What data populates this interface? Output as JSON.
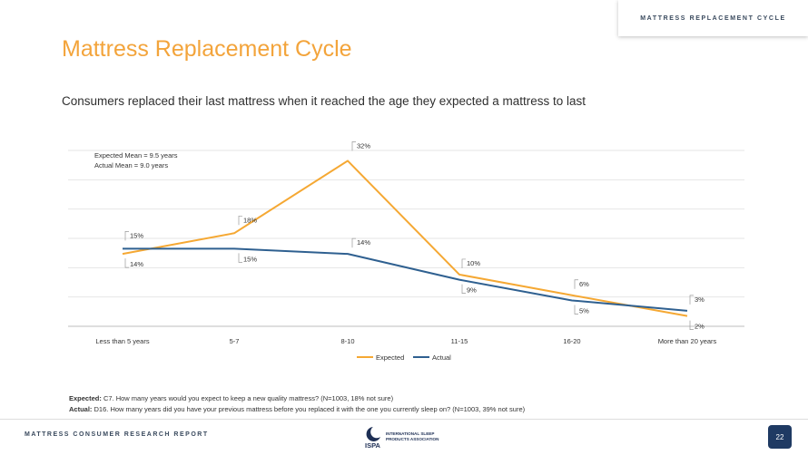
{
  "header": {
    "section_label": "MATTRESS REPLACEMENT CYCLE",
    "title": "Mattress Replacement Cycle",
    "subtitle": "Consumers replaced their last mattress when it reached the age they expected a mattress to last"
  },
  "chart_data": {
    "type": "line",
    "title": "",
    "xlabel": "",
    "ylabel": "",
    "categories": [
      "Less than 5 years",
      "5-7",
      "8-10",
      "11-15",
      "16-20",
      "More than 20 years"
    ],
    "series": [
      {
        "name": "Expected",
        "color": "#f5a833",
        "values": [
          14,
          18,
          32,
          10,
          6,
          2
        ],
        "labels": [
          "14%",
          "18%",
          "32%",
          "10%",
          "6%",
          "2%"
        ]
      },
      {
        "name": "Actual",
        "color": "#2f6090",
        "values": [
          15,
          15,
          14,
          9,
          5,
          3
        ],
        "labels": [
          "15%",
          "15%",
          "14%",
          "9%",
          "5%",
          "3%"
        ]
      }
    ],
    "ylim": [
      0,
      34
    ],
    "grid": true,
    "legend_position": "bottom-center",
    "annotations": [
      "Expected Mean = 9.5 years",
      "Actual Mean = 9.0 years"
    ]
  },
  "footnotes": {
    "expected_label": "Expected:",
    "expected_text": "C7. How many years would you expect to keep a new quality mattress? (N=1003, 18% not sure)",
    "actual_label": "Actual:",
    "actual_text": "D16. How many years did you have your previous mattress before you replaced it with the one you currently sleep on? (N=1003, 39% not sure)"
  },
  "footer": {
    "report_title": "MATTRESS CONSUMER RESEARCH REPORT",
    "logo_abbrev": "ISPA",
    "logo_name_lines": [
      "INTERNATIONAL SLEEP",
      "PRODUCTS ASSOCIATION"
    ],
    "page_number": "22"
  }
}
